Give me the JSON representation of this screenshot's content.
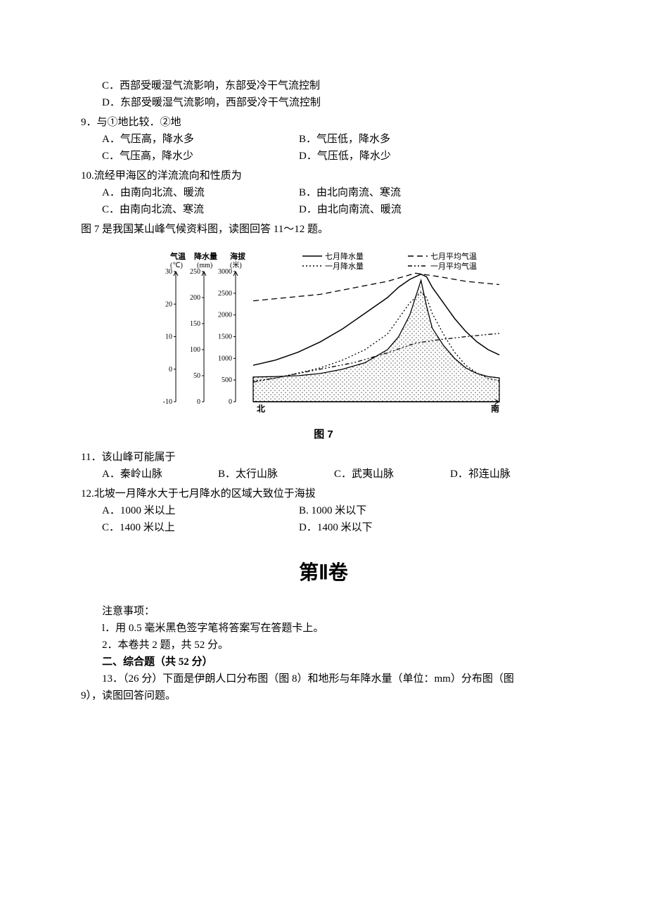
{
  "q8_options": {
    "c": "C．西部受暖湿气流影响，东部受冷干气流控制",
    "d": "D．东部受暖湿气流影响，西部受冷干气流控制"
  },
  "q9": {
    "text": "9．与①地比较．②地",
    "a": "A．气压高，降水多",
    "b": "B．气压低，降水多",
    "c": "C．气压高，降水少",
    "d": "D．气压低，降水少"
  },
  "q10": {
    "text": "10.流经甲海区的洋流流向和性质为",
    "a": "A．由南向北流、暖流",
    "b": "B．由北向南流、寒流",
    "c": "C．由南向北流、寒流",
    "d": "D．由北向南流、暖流"
  },
  "fig7_intro": "图 7 是我国某山峰气候资料图，读图回答 11～12 题。",
  "fig7": {
    "caption": "图 7",
    "axes": {
      "temp_label": "气温",
      "temp_unit": "(℃)",
      "temp_ticks": [
        30,
        20,
        10,
        0,
        -10
      ],
      "precip_label": "降水量",
      "precip_unit": "(mm)",
      "precip_ticks": [
        250,
        200,
        150,
        100,
        50,
        0
      ],
      "elev_label": "海拔",
      "elev_unit": "(米)",
      "elev_ticks": [
        3000,
        2500,
        2000,
        1500,
        1000,
        500,
        0
      ],
      "x_left": "北",
      "x_right": "南"
    },
    "legend": {
      "jul_precip": "七月降水量",
      "jul_temp": "七月平均气温",
      "jan_precip": "一月降水量",
      "jan_temp": "一月平均气温"
    },
    "colors": {
      "bg": "#ffffff",
      "line": "#000000",
      "text": "#000000"
    },
    "styles": {
      "jul_precip_dash": "none",
      "jul_temp_dash": "8,5",
      "jan_precip_dash": "2,3",
      "jan_temp_dash": "6,3,2,3,2,3"
    },
    "series": {
      "mountain": [
        [
          0,
          570
        ],
        [
          40,
          580
        ],
        [
          80,
          600
        ],
        [
          120,
          650
        ],
        [
          160,
          750
        ],
        [
          200,
          900
        ],
        [
          240,
          1200
        ],
        [
          260,
          1500
        ],
        [
          280,
          2000
        ],
        [
          300,
          2800
        ],
        [
          310,
          2200
        ],
        [
          320,
          1700
        ],
        [
          340,
          1300
        ],
        [
          360,
          1000
        ],
        [
          380,
          780
        ],
        [
          400,
          650
        ],
        [
          420,
          580
        ],
        [
          440,
          550
        ]
      ],
      "jul_precip": [
        [
          0,
          70
        ],
        [
          40,
          80
        ],
        [
          80,
          95
        ],
        [
          120,
          115
        ],
        [
          160,
          140
        ],
        [
          200,
          170
        ],
        [
          240,
          200
        ],
        [
          260,
          220
        ],
        [
          280,
          235
        ],
        [
          300,
          245
        ],
        [
          310,
          240
        ],
        [
          320,
          220
        ],
        [
          340,
          190
        ],
        [
          360,
          160
        ],
        [
          380,
          135
        ],
        [
          400,
          115
        ],
        [
          420,
          100
        ],
        [
          440,
          90
        ]
      ],
      "jan_precip": [
        [
          0,
          40
        ],
        [
          40,
          45
        ],
        [
          80,
          55
        ],
        [
          120,
          65
        ],
        [
          160,
          80
        ],
        [
          200,
          100
        ],
        [
          240,
          130
        ],
        [
          260,
          160
        ],
        [
          280,
          190
        ],
        [
          300,
          210
        ],
        [
          310,
          200
        ],
        [
          320,
          170
        ],
        [
          340,
          130
        ],
        [
          360,
          95
        ],
        [
          380,
          70
        ],
        [
          400,
          55
        ],
        [
          420,
          45
        ],
        [
          440,
          40
        ]
      ],
      "jul_temp": [
        [
          0,
          21
        ],
        [
          60,
          22
        ],
        [
          120,
          23
        ],
        [
          180,
          25
        ],
        [
          240,
          27
        ],
        [
          290,
          29.5
        ],
        [
          330,
          28.5
        ],
        [
          380,
          27
        ],
        [
          440,
          26
        ]
      ],
      "jan_temp": [
        [
          0,
          -4
        ],
        [
          60,
          -2
        ],
        [
          120,
          0
        ],
        [
          180,
          2
        ],
        [
          240,
          5
        ],
        [
          290,
          8
        ],
        [
          330,
          9
        ],
        [
          380,
          10
        ],
        [
          440,
          11
        ]
      ]
    }
  },
  "q11": {
    "text": "11．该山峰可能属于",
    "a": "A．秦岭山脉",
    "b": "B．太行山脉",
    "c": "C．武夷山脉",
    "d": "D．祁连山脉"
  },
  "q12": {
    "text": "12.北坡一月降水大于七月降水的区域大致位于海拔",
    "a": "A．1000 米以上",
    "b": "B. 1000 米以下",
    "c": "C．1400 米以上",
    "d": "D．1400 米以下"
  },
  "part2": {
    "title": "第Ⅱ卷",
    "notice_label": "注意事项：",
    "item1": "l．用 0.5 毫米黑色签字笔将答案写在答题卡上。",
    "item2": "2．本卷共 2 题，共 52 分。",
    "section_label": "二、综合题（共 52 分）",
    "q13": "13．（26 分）下面是伊朗人口分布图（图 8）和地形与年降水量（单位：mm）分布图（图",
    "q13b": "9），读图回答问题。"
  }
}
